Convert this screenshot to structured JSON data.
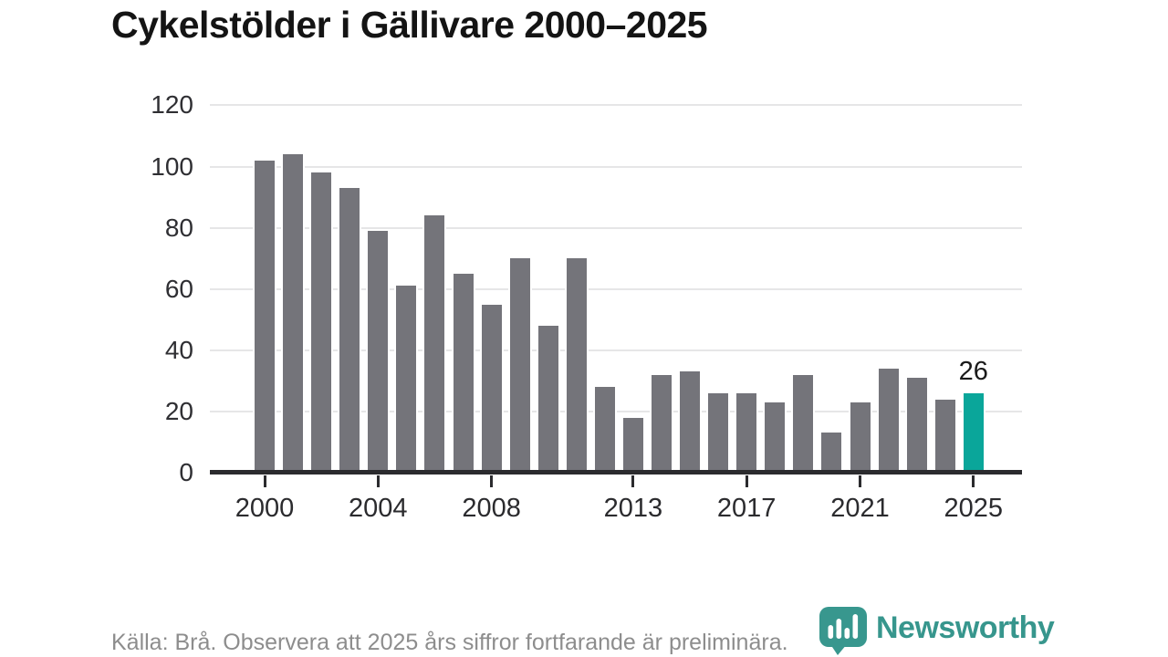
{
  "title": "Cykelstölder i Gällivare 2000–2025",
  "source_note": "Källa: Brå. Observera att 2025 års siffror fortfarande är preliminära.",
  "brand": {
    "name": "Newsworthy",
    "color": "#37968d",
    "icon": "newsworthy-pin-barchart-icon"
  },
  "colors": {
    "bar": "#74747a",
    "bar_highlight": "#0aa69a",
    "grid": "#e6e6e7",
    "axis": "#2b2b2e",
    "tick_text": "#2f2f33",
    "muted_text": "#8d8d8d"
  },
  "chart_data": {
    "type": "bar",
    "title": "Cykelstölder i Gällivare 2000–2025",
    "xlabel": "",
    "ylabel": "",
    "x": [
      2000,
      2001,
      2002,
      2003,
      2004,
      2005,
      2006,
      2007,
      2008,
      2009,
      2010,
      2011,
      2012,
      2013,
      2014,
      2015,
      2016,
      2017,
      2018,
      2019,
      2020,
      2021,
      2022,
      2023,
      2024,
      2025
    ],
    "values": [
      102,
      104,
      98,
      93,
      79,
      61,
      84,
      65,
      55,
      70,
      48,
      70,
      28,
      18,
      32,
      33,
      26,
      26,
      23,
      32,
      13,
      23,
      34,
      31,
      24,
      26
    ],
    "highlight_index": 25,
    "bar_label": {
      "index": 25,
      "text": "26"
    },
    "ylim": [
      0,
      120
    ],
    "yticks": [
      0,
      20,
      40,
      60,
      80,
      100,
      120
    ],
    "xticks": [
      2000,
      2004,
      2008,
      2013,
      2017,
      2021,
      2025
    ],
    "grid": true,
    "legend": false
  }
}
